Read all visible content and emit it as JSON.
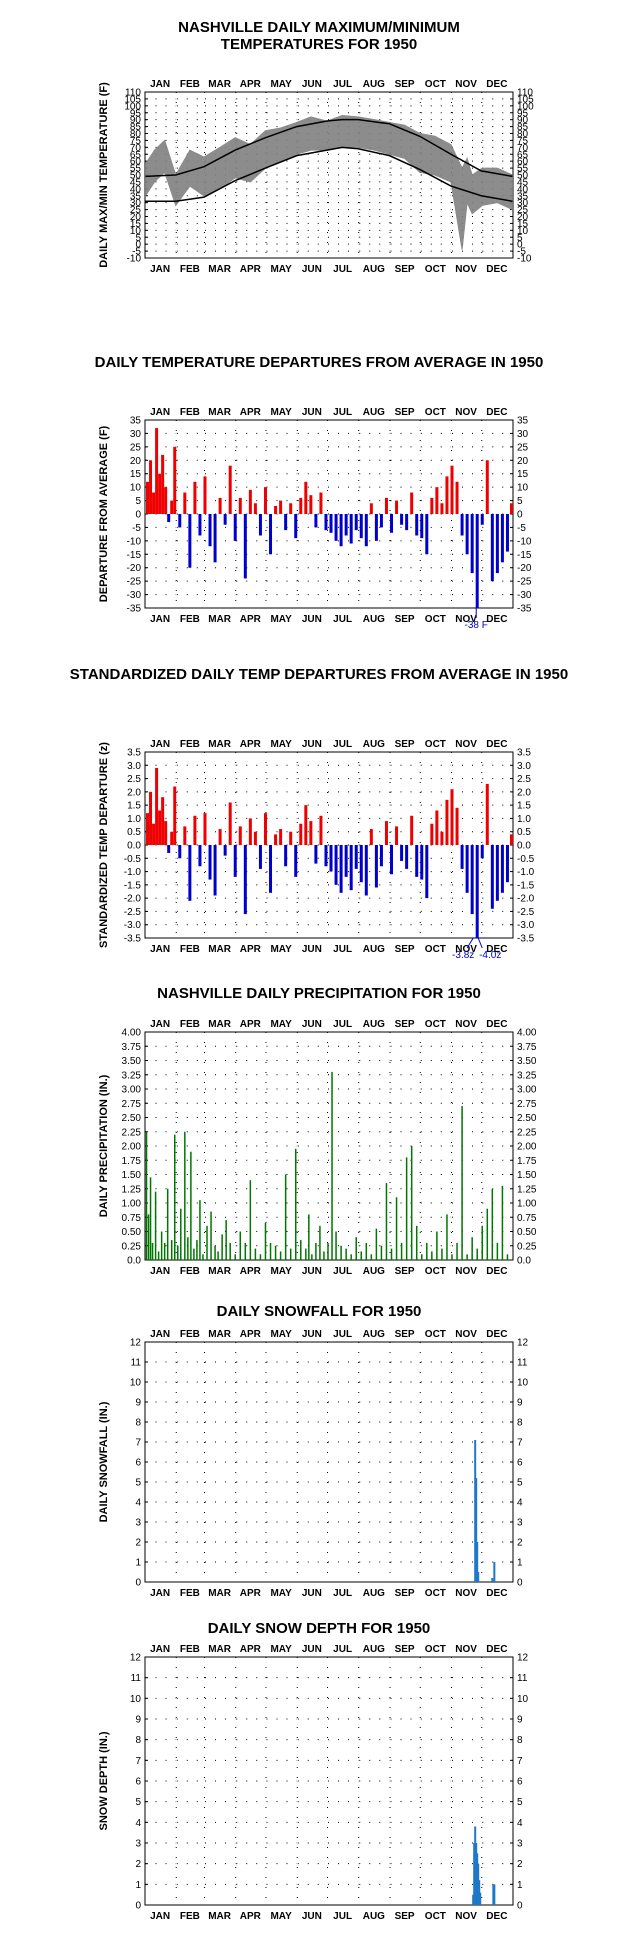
{
  "colors": {
    "warm": "#ee0000",
    "cold": "#0000cc",
    "precip": "#007700",
    "snow": "#1f78c8",
    "temp_band": "#808080",
    "normal_line": "#000000",
    "grid": "#000000"
  },
  "months": [
    "JAN",
    "FEB",
    "MAR",
    "APR",
    "MAY",
    "JUN",
    "JUL",
    "AUG",
    "SEP",
    "OCT",
    "NOV",
    "DEC"
  ],
  "month_days": [
    31,
    28,
    31,
    30,
    31,
    30,
    31,
    31,
    30,
    31,
    30,
    31
  ],
  "chart_data": [
    {
      "id": "maxmin",
      "type": "area",
      "title": "NASHVILLE DAILY MAXIMUM/MINIMUM TEMPERATURES FOR 1950",
      "title_lines": [
        "NASHVILLE DAILY MAXIMUM/MINIMUM",
        "TEMPERATURES FOR 1950"
      ],
      "ylabel": "DAILY MAX/MIN TEMPERATURE (F)",
      "ylim": [
        -10,
        110
      ],
      "yticks": [
        -10,
        -5,
        0,
        5,
        10,
        15,
        20,
        25,
        30,
        35,
        40,
        45,
        50,
        55,
        60,
        65,
        70,
        75,
        80,
        85,
        90,
        95,
        100,
        105,
        110
      ],
      "months_top": true,
      "grid": "dotted",
      "series": [
        {
          "role": "daily max",
          "x": [
            1,
            10,
            20,
            31,
            45,
            59,
            75,
            90,
            105,
            120,
            135,
            151,
            165,
            181,
            196,
            212,
            228,
            243,
            258,
            273,
            288,
            304,
            315,
            320,
            325,
            335,
            350,
            365
          ],
          "values": [
            58,
            68,
            75,
            50,
            68,
            63,
            70,
            77,
            72,
            82,
            84,
            88,
            92,
            89,
            93,
            92,
            90,
            88,
            86,
            80,
            78,
            72,
            55,
            62,
            50,
            55,
            55,
            50
          ]
        },
        {
          "role": "daily min",
          "x": [
            1,
            10,
            20,
            31,
            45,
            59,
            75,
            90,
            105,
            120,
            135,
            151,
            165,
            181,
            196,
            212,
            228,
            243,
            258,
            273,
            288,
            304,
            315,
            320,
            325,
            335,
            350,
            365
          ],
          "values": [
            35,
            45,
            52,
            28,
            42,
            35,
            40,
            48,
            45,
            55,
            60,
            65,
            68,
            68,
            70,
            70,
            68,
            65,
            62,
            52,
            50,
            45,
            -4,
            30,
            22,
            28,
            30,
            25
          ]
        },
        {
          "role": "normal max",
          "x": [
            1,
            31,
            59,
            90,
            120,
            151,
            181,
            196,
            212,
            243,
            273,
            304,
            334,
            365
          ],
          "values": [
            49,
            50,
            56,
            68,
            77,
            85,
            89,
            90,
            90,
            87,
            78,
            65,
            53,
            49
          ]
        },
        {
          "role": "normal min",
          "x": [
            1,
            31,
            59,
            90,
            120,
            151,
            181,
            196,
            212,
            243,
            273,
            304,
            334,
            365
          ],
          "values": [
            31,
            31,
            34,
            46,
            55,
            64,
            68,
            70,
            69,
            64,
            54,
            42,
            35,
            31
          ]
        }
      ]
    },
    {
      "id": "departure",
      "type": "bar",
      "title": "DAILY TEMPERATURE DEPARTURES FROM AVERAGE IN 1950",
      "ylabel": "DEPARTURE FROM AVERAGE (F)",
      "ylim": [
        -35,
        35
      ],
      "yticks": [
        -35,
        -30,
        -25,
        -20,
        -15,
        -10,
        -5,
        0,
        5,
        10,
        15,
        20,
        25,
        30,
        35
      ],
      "months_top": true,
      "grid": "dotted",
      "x": [
        3,
        6,
        9,
        12,
        15,
        18,
        21,
        24,
        27,
        30,
        35,
        40,
        45,
        50,
        55,
        60,
        65,
        70,
        75,
        80,
        85,
        90,
        95,
        100,
        105,
        110,
        115,
        120,
        125,
        130,
        135,
        140,
        145,
        150,
        155,
        160,
        165,
        170,
        175,
        180,
        185,
        190,
        195,
        200,
        205,
        210,
        215,
        220,
        225,
        230,
        235,
        240,
        245,
        250,
        255,
        260,
        265,
        270,
        275,
        280,
        285,
        290,
        295,
        300,
        305,
        310,
        315,
        320,
        325,
        330,
        335,
        340,
        345,
        350,
        355,
        360,
        364
      ],
      "values": [
        12,
        20,
        8,
        32,
        15,
        22,
        10,
        -3,
        5,
        25,
        -5,
        8,
        -20,
        12,
        -8,
        14,
        -12,
        -18,
        6,
        -4,
        18,
        -10,
        6,
        -24,
        9,
        4,
        -8,
        10,
        -15,
        3,
        5,
        -6,
        4,
        -9,
        6,
        12,
        7,
        -5,
        8,
        -6,
        -7,
        -10,
        -12,
        -8,
        -11,
        -6,
        -9,
        -12,
        4,
        -10,
        -5,
        6,
        -7,
        5,
        -4,
        -6,
        8,
        -8,
        -9,
        -15,
        6,
        10,
        4,
        14,
        18,
        12,
        -8,
        -15,
        -22,
        -35,
        -4,
        20,
        -25,
        -22,
        -18,
        -14,
        4
      ],
      "annotations": [
        "-38 F"
      ]
    },
    {
      "id": "standardized",
      "type": "bar",
      "title": "STANDARDIZED DAILY TEMP DEPARTURES FROM AVERAGE IN 1950",
      "ylabel": "STANDARDIZED TEMP DEPARTURE (z)",
      "ylim": [
        -3.5,
        3.5
      ],
      "yticks": [
        -3.5,
        -3.0,
        -2.5,
        -2.0,
        -1.5,
        -1.0,
        -0.5,
        0.0,
        0.5,
        1.0,
        1.5,
        2.0,
        2.5,
        3.0,
        3.5
      ],
      "months_top": true,
      "grid": "dotted",
      "x": [
        3,
        6,
        9,
        12,
        15,
        18,
        21,
        24,
        27,
        30,
        35,
        40,
        45,
        50,
        55,
        60,
        65,
        70,
        75,
        80,
        85,
        90,
        95,
        100,
        105,
        110,
        115,
        120,
        125,
        130,
        135,
        140,
        145,
        150,
        155,
        160,
        165,
        170,
        175,
        180,
        185,
        190,
        195,
        200,
        205,
        210,
        215,
        220,
        225,
        230,
        235,
        240,
        245,
        250,
        255,
        260,
        265,
        270,
        275,
        280,
        285,
        290,
        295,
        300,
        305,
        310,
        315,
        320,
        325,
        330,
        335,
        340,
        345,
        350,
        355,
        360,
        364
      ],
      "values": [
        1.2,
        2.0,
        0.8,
        2.9,
        1.3,
        1.8,
        0.9,
        -0.3,
        0.5,
        2.2,
        -0.5,
        0.7,
        -2.1,
        1.1,
        -0.8,
        1.2,
        -1.3,
        -1.9,
        0.6,
        -0.4,
        1.6,
        -1.2,
        0.7,
        -2.6,
        1.0,
        0.5,
        -0.9,
        1.2,
        -1.8,
        0.4,
        0.6,
        -0.8,
        0.5,
        -1.2,
        0.8,
        1.5,
        0.9,
        -0.7,
        1.1,
        -0.8,
        -1.0,
        -1.5,
        -1.8,
        -1.2,
        -1.7,
        -0.9,
        -1.4,
        -1.9,
        0.6,
        -1.6,
        -0.8,
        0.9,
        -1.1,
        0.7,
        -0.6,
        -0.9,
        1.1,
        -1.2,
        -1.3,
        -2.0,
        0.8,
        1.3,
        0.5,
        1.7,
        2.1,
        1.4,
        -0.9,
        -1.8,
        -2.6,
        -3.5,
        -0.5,
        2.3,
        -2.4,
        -2.1,
        -1.8,
        -1.4,
        0.4
      ],
      "annotations": [
        "-3.8z",
        "-4.0z"
      ]
    },
    {
      "id": "precip",
      "type": "bar",
      "title": "NASHVILLE DAILY PRECIPITATION FOR 1950",
      "ylabel": "DAILY PRECIPITATION (IN.)",
      "ylim": [
        0,
        4.0
      ],
      "yticks": [
        0.0,
        0.25,
        0.5,
        0.75,
        1.0,
        1.25,
        1.5,
        1.75,
        2.0,
        2.25,
        2.5,
        2.75,
        3.0,
        3.25,
        3.5,
        3.75,
        4.0
      ],
      "ytick_labels": [
        "0.0",
        "0.25",
        "0.50",
        "0.75",
        "1.00",
        "1.25",
        "1.50",
        "1.75",
        "2.00",
        "2.25",
        "2.50",
        "2.75",
        "3.00",
        "3.25",
        "3.50",
        "3.75",
        "4.00"
      ],
      "months_top": true,
      "grid": "dotted",
      "x": [
        2,
        4,
        6,
        8,
        11,
        14,
        17,
        20,
        23,
        27,
        30,
        33,
        36,
        40,
        43,
        46,
        49,
        52,
        55,
        58,
        62,
        66,
        70,
        73,
        77,
        81,
        85,
        90,
        95,
        100,
        105,
        110,
        115,
        120,
        125,
        130,
        135,
        140,
        145,
        150,
        155,
        160,
        163,
        166,
        170,
        174,
        178,
        182,
        186,
        190,
        195,
        200,
        205,
        210,
        215,
        220,
        225,
        230,
        235,
        240,
        245,
        250,
        255,
        260,
        265,
        270,
        275,
        280,
        285,
        290,
        295,
        300,
        305,
        310,
        315,
        320,
        325,
        330,
        335,
        340,
        345,
        350,
        355,
        360
      ],
      "values": [
        2.25,
        0.8,
        1.45,
        0.3,
        1.2,
        0.15,
        0.5,
        0.3,
        1.25,
        0.35,
        2.2,
        0.25,
        0.9,
        2.25,
        0.4,
        1.9,
        0.2,
        0.35,
        1.05,
        0.1,
        0.6,
        0.85,
        0.25,
        0.15,
        0.45,
        0.7,
        0.3,
        0.1,
        0.5,
        0.3,
        1.4,
        0.2,
        0.1,
        0.65,
        0.3,
        0.25,
        0.15,
        1.5,
        0.2,
        1.95,
        0.35,
        0.2,
        0.8,
        0.1,
        0.3,
        0.6,
        0.15,
        0.3,
        3.3,
        0.5,
        0.25,
        0.2,
        0.1,
        0.4,
        0.15,
        0.3,
        0.1,
        0.55,
        0.25,
        1.35,
        0.2,
        1.1,
        0.3,
        1.8,
        2.0,
        0.6,
        0.1,
        0.3,
        0.15,
        0.5,
        0.2,
        0.8,
        0.1,
        0.3,
        2.7,
        0.1,
        0.4,
        0.2,
        0.6,
        0.9,
        1.25,
        0.3,
        1.3,
        0.1
      ],
      "annotations": []
    },
    {
      "id": "snowfall",
      "type": "bar",
      "title": "DAILY SNOWFALL FOR 1950",
      "ylabel": "DAILY SNOWFALL (IN.)",
      "ylim": [
        0,
        12
      ],
      "yticks": [
        0,
        1,
        2,
        3,
        4,
        5,
        6,
        7,
        8,
        9,
        10,
        11,
        12
      ],
      "months_top": true,
      "grid": "dotted",
      "x": [
        328,
        329,
        330,
        331,
        345,
        347
      ],
      "values": [
        7.1,
        5.2,
        2.0,
        0.5,
        0.2,
        1.0
      ]
    },
    {
      "id": "snowdepth",
      "type": "bar",
      "title": "DAILY SNOW DEPTH FOR 1950",
      "ylabel": "SNOW DEPTH (IN.)",
      "ylim": [
        0,
        12
      ],
      "yticks": [
        0,
        1,
        2,
        3,
        4,
        5,
        6,
        7,
        8,
        9,
        10,
        11,
        12
      ],
      "months_top": true,
      "grid": "dotted",
      "x": [
        326,
        327,
        328,
        329,
        330,
        331,
        332,
        333,
        346,
        347
      ],
      "values": [
        0.5,
        3.0,
        3.8,
        3.0,
        2.5,
        2.0,
        1.2,
        0.6,
        1.0,
        1.0
      ]
    }
  ]
}
